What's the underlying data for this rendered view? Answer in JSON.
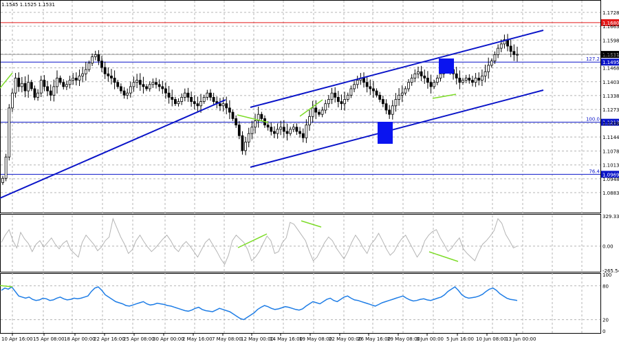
{
  "header": {
    "ohlc_text": "1.1545 1.1525 1.1531"
  },
  "chart_data": [
    {
      "type": "candlestick",
      "pane": "price",
      "ylim": [
        1.0883,
        1.1728
      ],
      "y_ticks": [
        1.1728,
        1.1663,
        1.1598,
        1.1533,
        1.1468,
        1.1403,
        1.1338,
        1.1273,
        1.1208,
        1.1144,
        1.1078,
        1.1013,
        1.0948,
        1.0883
      ],
      "hlines": [
        {
          "value": 1.168,
          "label": "1.1680",
          "line_label": "",
          "color": "#e31919"
        },
        {
          "value": 1.1495,
          "label": "1.1495",
          "line_label": "127.2",
          "color": "#0a14c8"
        },
        {
          "value": 1.1213,
          "label": "1.1213",
          "line_label": "100.0",
          "color": "#0a14c8"
        },
        {
          "value": 1.0969,
          "label": "1.0969",
          "line_label": "76.4",
          "color": "#0a14c8"
        }
      ],
      "current_price": {
        "value": 1.1531,
        "label": "1.1531"
      },
      "closes": [
        1.095,
        1.105,
        1.128,
        1.135,
        1.142,
        1.138,
        1.1395,
        1.136,
        1.14,
        1.137,
        1.133,
        1.135,
        1.141,
        1.138,
        1.136,
        1.134,
        1.138,
        1.142,
        1.14,
        1.138,
        1.139,
        1.141,
        1.142,
        1.141,
        1.143,
        1.144,
        1.146,
        1.149,
        1.152,
        1.153,
        1.15,
        1.147,
        1.144,
        1.143,
        1.142,
        1.14,
        1.138,
        1.136,
        1.134,
        1.135,
        1.138,
        1.14,
        1.141,
        1.139,
        1.138,
        1.137,
        1.139,
        1.14,
        1.139,
        1.138,
        1.137,
        1.135,
        1.133,
        1.132,
        1.13,
        1.131,
        1.133,
        1.135,
        1.133,
        1.131,
        1.13,
        1.129,
        1.131,
        1.133,
        1.135,
        1.133,
        1.131,
        1.13,
        1.129,
        1.13,
        1.128,
        1.126,
        1.123,
        1.12,
        1.115,
        1.108,
        1.112,
        1.116,
        1.119,
        1.122,
        1.125,
        1.123,
        1.12,
        1.119,
        1.117,
        1.116,
        1.118,
        1.119,
        1.117,
        1.116,
        1.118,
        1.119,
        1.117,
        1.116,
        1.114,
        1.12,
        1.124,
        1.128,
        1.126,
        1.125,
        1.127,
        1.13,
        1.132,
        1.135,
        1.133,
        1.131,
        1.13,
        1.132,
        1.134,
        1.137,
        1.139,
        1.141,
        1.142,
        1.14,
        1.138,
        1.137,
        1.136,
        1.134,
        1.132,
        1.13,
        1.127,
        1.125,
        1.129,
        1.132,
        1.134,
        1.135,
        1.137,
        1.14,
        1.142,
        1.144,
        1.145,
        1.143,
        1.142,
        1.14,
        1.138,
        1.14,
        1.142,
        1.144,
        1.147,
        1.148,
        1.146,
        1.144,
        1.142,
        1.14,
        1.141,
        1.142,
        1.141,
        1.14,
        1.142,
        1.141,
        1.143,
        1.145,
        1.148,
        1.15,
        1.153,
        1.156,
        1.158,
        1.16,
        1.157,
        1.1545,
        1.153,
        1.1531
      ],
      "annotations": [
        "ascending trend channel",
        "two blue square markers",
        "green divergence lines",
        "ascending trend line"
      ]
    },
    {
      "type": "line",
      "pane": "oscillator",
      "ylim": [
        -265.544,
        329.3341
      ],
      "y_ticks": [
        329.3341,
        0.0,
        -265.544
      ],
      "y_tick_labels": [
        "329.3341",
        "0.00",
        "-265.544"
      ],
      "color": "#b4b4b4",
      "values": [
        40,
        120,
        180,
        60,
        -20,
        150,
        80,
        30,
        -60,
        20,
        60,
        -10,
        40,
        90,
        20,
        -30,
        30,
        60,
        -40,
        -80,
        -120,
        40,
        120,
        70,
        20,
        -50,
        -10,
        60,
        100,
        300,
        200,
        100,
        20,
        -80,
        -40,
        60,
        120,
        50,
        -10,
        -60,
        -20,
        30,
        80,
        120,
        60,
        -20,
        -60,
        10,
        50,
        0,
        -60,
        -120,
        -40,
        40,
        80,
        10,
        -60,
        -140,
        -200,
        -100,
        60,
        120,
        80,
        40,
        -40,
        -160,
        -120,
        -60,
        30,
        110,
        60,
        -80,
        -60,
        40,
        90,
        260,
        240,
        180,
        120,
        60,
        -60,
        -160,
        -120,
        -40,
        40,
        100,
        60,
        -20,
        -80,
        -140,
        -60,
        40,
        120,
        60,
        -20,
        -80,
        20,
        70,
        140,
        60,
        -30,
        -100,
        -60,
        20,
        80,
        120,
        40,
        -40,
        -120,
        -60,
        60,
        120,
        160,
        180,
        90,
        20,
        -60,
        -20,
        40,
        90,
        -30,
        -80,
        -120,
        -160,
        -60,
        20,
        60,
        110,
        170,
        300,
        250,
        130,
        60,
        -20,
        0
      ],
      "annotations": [
        "green divergence lines"
      ]
    },
    {
      "type": "line",
      "pane": "rsi",
      "ylim": [
        0,
        100
      ],
      "y_ticks": [
        100,
        80,
        20,
        0
      ],
      "y_tick_labels": [
        "100",
        "80",
        "20",
        "0"
      ],
      "levels": [
        80,
        20
      ],
      "color": "#1e7de6",
      "values": [
        72,
        76,
        74,
        78,
        70,
        62,
        60,
        58,
        60,
        56,
        54,
        55,
        58,
        57,
        54,
        55,
        58,
        60,
        57,
        55,
        56,
        58,
        57,
        58,
        60,
        62,
        70,
        76,
        78,
        72,
        64,
        60,
        56,
        52,
        50,
        48,
        45,
        44,
        46,
        48,
        50,
        52,
        48,
        46,
        47,
        49,
        48,
        47,
        45,
        44,
        42,
        40,
        38,
        36,
        35,
        37,
        40,
        42,
        38,
        36,
        35,
        34,
        37,
        40,
        38,
        36,
        34,
        30,
        26,
        22,
        20,
        24,
        28,
        32,
        38,
        42,
        45,
        43,
        40,
        38,
        39,
        41,
        43,
        42,
        40,
        38,
        37,
        39,
        44,
        48,
        52,
        50,
        48,
        52,
        56,
        58,
        54,
        52,
        56,
        60,
        62,
        58,
        55,
        54,
        52,
        50,
        48,
        46,
        44,
        47,
        50,
        52,
        54,
        56,
        58,
        60,
        62,
        58,
        55,
        53,
        54,
        56,
        57,
        55,
        54,
        56,
        58,
        60,
        64,
        70,
        74,
        78,
        72,
        64,
        60,
        58,
        59,
        60,
        62,
        65,
        70,
        74,
        76,
        72,
        66,
        62,
        58,
        56,
        55,
        54
      ]
    }
  ],
  "x_axis": {
    "labels": [
      "10 Apr 16:00",
      "15 Apr 08:00",
      "18 Apr 00:00",
      "22 Apr 16:00",
      "25 Apr 08:00",
      "30 Apr 00:00",
      "2 May 16:00",
      "7 May 08:00",
      "12 May 00:00",
      "14 May 16:00",
      "19 May 08:00",
      "22 May 00:00",
      "26 May 16:00",
      "29 May 08:00",
      "3 Jun 00:00",
      "5 Jun 16:00",
      "10 Jun 08:00",
      "13 Jun 00:00"
    ]
  },
  "colors": {
    "channel": "#0a14c8",
    "divergence": "#7ddc28",
    "marker": "#0a14f0",
    "resistance": "#e31919",
    "grid": "#b4b4b4",
    "candle": "#000000"
  }
}
